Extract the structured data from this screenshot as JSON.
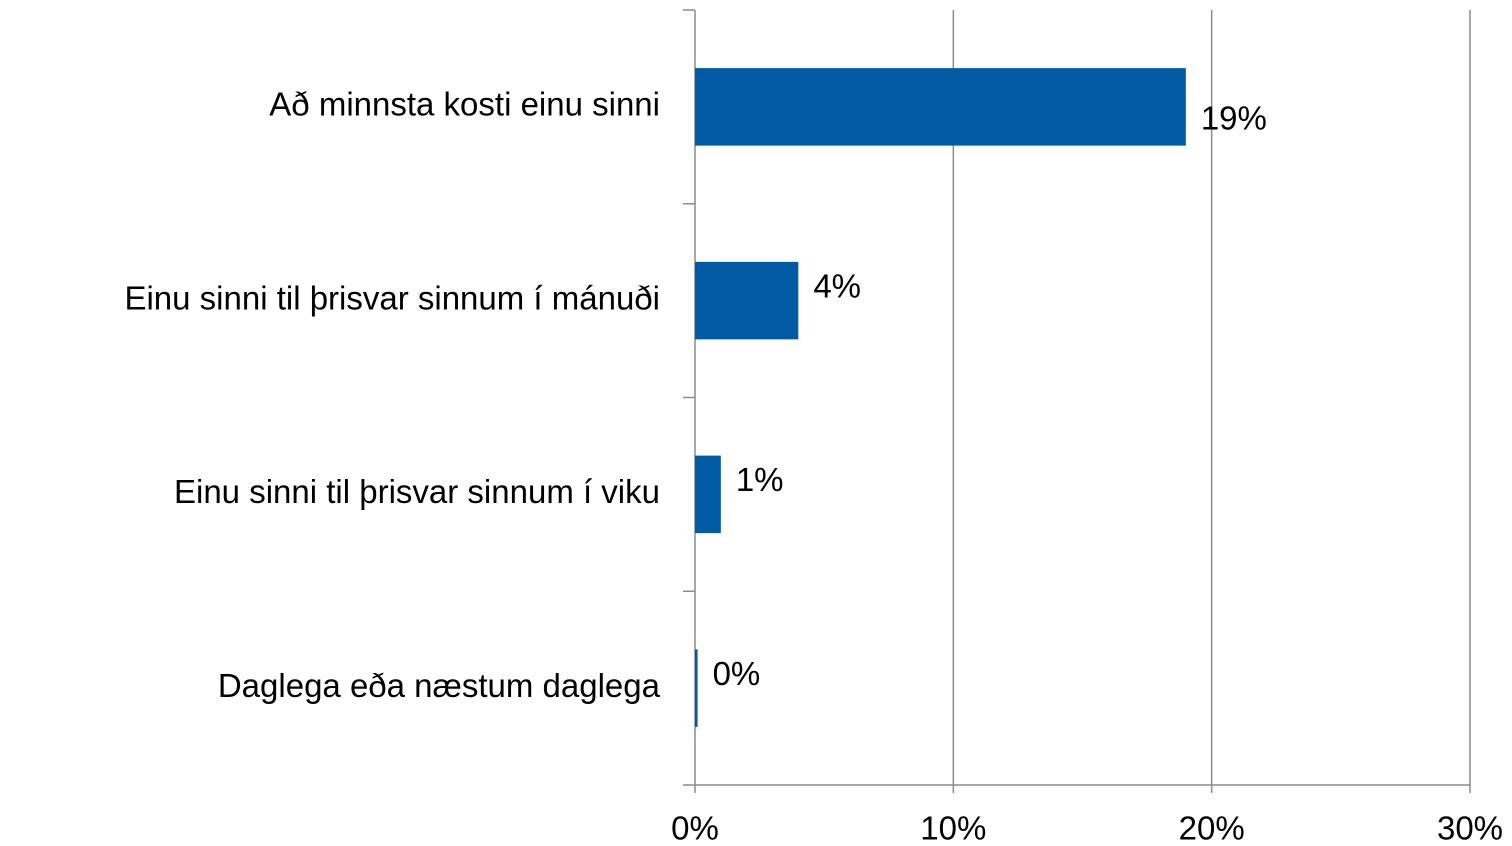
{
  "chart_data": {
    "type": "bar",
    "orientation": "horizontal",
    "categories": [
      "Að minnsta kosti einu sinni",
      "Einu sinni til þrisvar sinnum í mánuði",
      "Einu sinni til þrisvar sinnum í viku",
      "Daglega eða næstum daglega"
    ],
    "values": [
      19,
      4,
      1,
      0.1
    ],
    "value_labels": [
      "19%",
      "4%",
      "1%",
      "0%"
    ],
    "color": "#005ba4",
    "xlim": [
      0,
      30
    ],
    "xticks": [
      {
        "value": 0,
        "label": "0%"
      },
      {
        "value": 10,
        "label": "10%"
      },
      {
        "value": 20,
        "label": "20%"
      },
      {
        "value": 30,
        "label": "30%"
      }
    ],
    "grid": true
  }
}
